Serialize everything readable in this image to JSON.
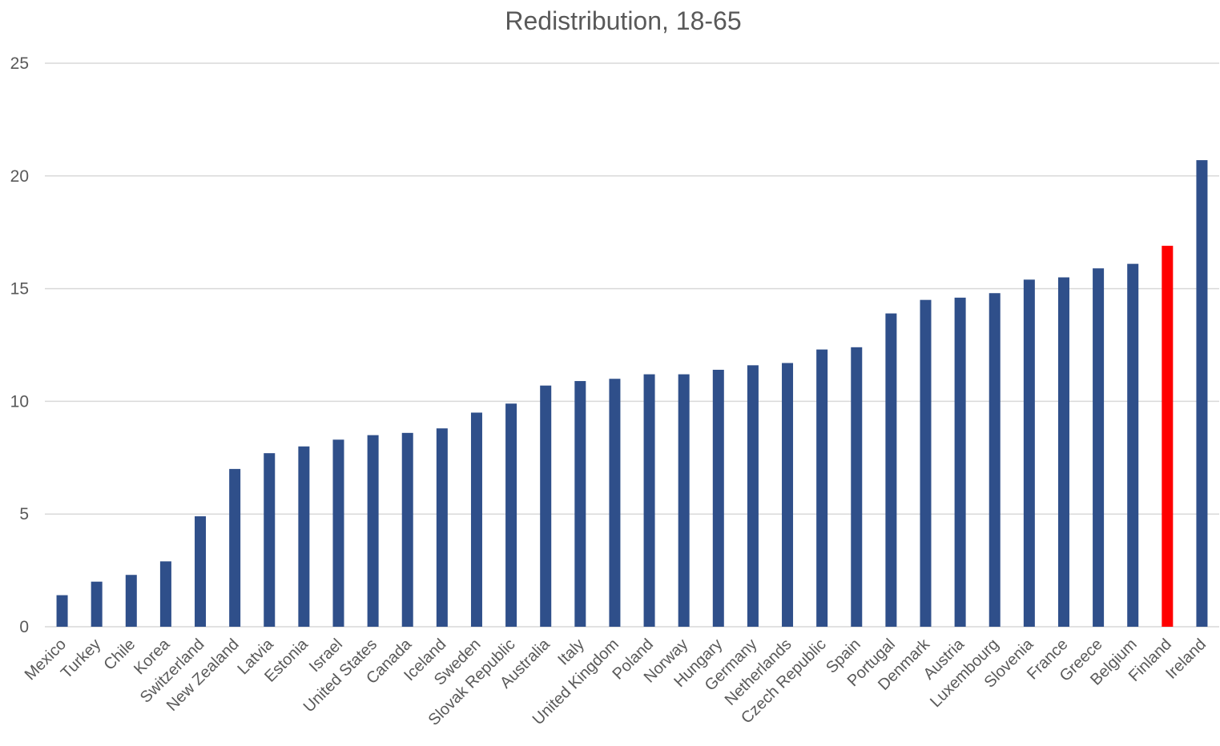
{
  "chart_data": {
    "type": "bar",
    "title": "Redistribution, 18-65",
    "xlabel": "",
    "ylabel": "",
    "ylim": [
      0,
      25
    ],
    "yticks": [
      0,
      5,
      10,
      15,
      20,
      25
    ],
    "grid": true,
    "legend": "none",
    "colors": {
      "default": "#2F4F8A",
      "highlight": "#FF0000"
    },
    "highlight_category": "Finland",
    "categories": [
      "Mexico",
      "Turkey",
      "Chile",
      "Korea",
      "Switzerland",
      "New Zealand",
      "Latvia",
      "Estonia",
      "Israel",
      "United States",
      "Canada",
      "Iceland",
      "Sweden",
      "Slovak Republic",
      "Australia",
      "Italy",
      "United Kingdom",
      "Poland",
      "Norway",
      "Hungary",
      "Germany",
      "Netherlands",
      "Czech Republic",
      "Spain",
      "Portugal",
      "Denmark",
      "Austria",
      "Luxembourg",
      "Slovenia",
      "France",
      "Greece",
      "Belgium",
      "Finland",
      "Ireland"
    ],
    "values": [
      1.4,
      2.0,
      2.3,
      2.9,
      4.9,
      7.0,
      7.7,
      8.0,
      8.3,
      8.5,
      8.6,
      8.8,
      9.5,
      9.9,
      10.7,
      10.9,
      11.0,
      11.2,
      11.2,
      11.4,
      11.6,
      11.7,
      12.3,
      12.4,
      13.9,
      14.5,
      14.6,
      14.8,
      15.4,
      15.5,
      15.9,
      16.1,
      16.9,
      20.7
    ]
  }
}
